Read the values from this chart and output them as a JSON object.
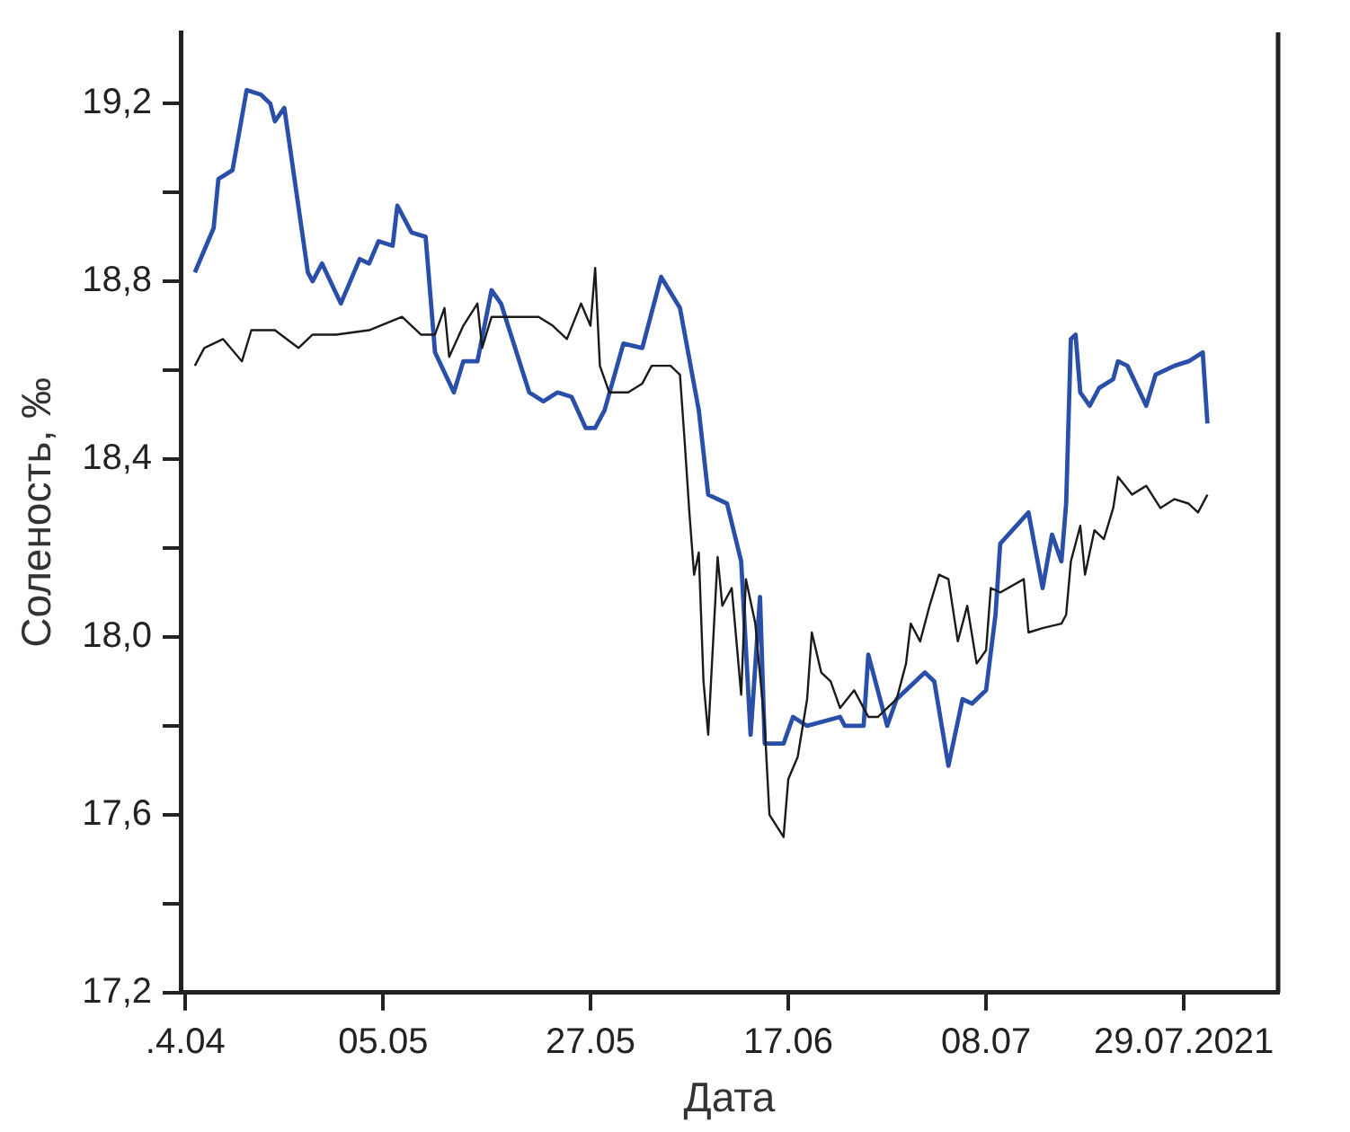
{
  "chart_data": {
    "type": "line",
    "xlabel": "Дата",
    "ylabel": "Соленость, ‰",
    "xlim": [
      "2021-04-13T12:00",
      "2021-08-08"
    ],
    "ylim": [
      17.2,
      19.36
    ],
    "xticks": [
      {
        "value": "2021-04-14",
        "label": ".4.04"
      },
      {
        "value": "2021-05-05",
        "label": "05.05"
      },
      {
        "value": "2021-05-27",
        "label": "27.05"
      },
      {
        "value": "2021-06-17",
        "label": "17.06"
      },
      {
        "value": "2021-07-08",
        "label": "08.07"
      },
      {
        "value": "2021-07-29",
        "label": "29.07.2021"
      }
    ],
    "yticks": [
      {
        "value": 17.2,
        "label": "17,2"
      },
      {
        "value": 17.4,
        "label": null
      },
      {
        "value": 17.6,
        "label": "17,6"
      },
      {
        "value": 17.8,
        "label": null
      },
      {
        "value": 18.0,
        "label": "18,0"
      },
      {
        "value": 18.2,
        "label": null
      },
      {
        "value": 18.4,
        "label": "18,4"
      },
      {
        "value": 18.6,
        "label": null
      },
      {
        "value": 18.8,
        "label": "18,8"
      },
      {
        "value": 19.0,
        "label": null
      },
      {
        "value": 19.2,
        "label": "19,2"
      }
    ],
    "series": [
      {
        "color": "#1a1a1a",
        "x": [
          "2021-04-15",
          "2021-04-16",
          "2021-04-18",
          "2021-04-20",
          "2021-04-21",
          "2021-04-23T12:00",
          "2021-04-26",
          "2021-04-27T12:00",
          "2021-04-30",
          "2021-05-03T12:00",
          "2021-05-07",
          "2021-05-09",
          "2021-05-10T12:00",
          "2021-05-11T12:00",
          "2021-05-12",
          "2021-05-13T12:00",
          "2021-05-15",
          "2021-05-15T12:00",
          "2021-05-16T12:00",
          "2021-05-19",
          "2021-05-21T12:00",
          "2021-05-23",
          "2021-05-24T12:00",
          "2021-05-26",
          "2021-05-27",
          "2021-05-27T12:00",
          "2021-05-28",
          "2021-05-29",
          "2021-05-31",
          "2021-06-01T12:00",
          "2021-06-02T12:00",
          "2021-06-04T12:00",
          "2021-06-05T12:00",
          "2021-06-06",
          "2021-06-06T12:00",
          "2021-06-07",
          "2021-06-07T12:00",
          "2021-06-08",
          "2021-06-08T12:00",
          "2021-06-09T12:00",
          "2021-06-10",
          "2021-06-11",
          "2021-06-12",
          "2021-06-12T12:00",
          "2021-06-13T12:00",
          "2021-06-14T12:00",
          "2021-06-15",
          "2021-06-16T12:00",
          "2021-06-17",
          "2021-06-18",
          "2021-06-19",
          "2021-06-19T12:00",
          "2021-06-20T12:00",
          "2021-06-21T12:00",
          "2021-06-22T12:00",
          "2021-06-24",
          "2021-06-25T12:00",
          "2021-06-26T12:00",
          "2021-06-28T12:00",
          "2021-06-29T12:00",
          "2021-06-30",
          "2021-07-01",
          "2021-07-02",
          "2021-07-03",
          "2021-07-04",
          "2021-07-05",
          "2021-07-06",
          "2021-07-07",
          "2021-07-08",
          "2021-07-08T12:00",
          "2021-07-09T12:00",
          "2021-07-12",
          "2021-07-12T12:00",
          "2021-07-14",
          "2021-07-16",
          "2021-07-16T12:00",
          "2021-07-17",
          "2021-07-18",
          "2021-07-18T12:00",
          "2021-07-19T12:00",
          "2021-07-20T12:00",
          "2021-07-21T12:00",
          "2021-07-22",
          "2021-07-23T12:00",
          "2021-07-25",
          "2021-07-26T12:00",
          "2021-07-28",
          "2021-07-29T12:00",
          "2021-07-30T12:00",
          "2021-07-31T12:00"
        ],
        "values": [
          18.61,
          18.65,
          18.67,
          18.62,
          18.69,
          18.69,
          18.65,
          18.68,
          18.68,
          18.69,
          18.72,
          18.68,
          18.68,
          18.74,
          18.63,
          18.7,
          18.75,
          18.65,
          18.72,
          18.72,
          18.72,
          18.7,
          18.67,
          18.75,
          18.7,
          18.83,
          18.61,
          18.55,
          18.55,
          18.57,
          18.61,
          18.61,
          18.59,
          18.44,
          18.28,
          18.14,
          18.19,
          17.9,
          17.78,
          18.18,
          18.07,
          18.11,
          17.87,
          18.13,
          18.03,
          17.8,
          17.6,
          17.55,
          17.68,
          17.73,
          17.86,
          18.01,
          17.92,
          17.9,
          17.84,
          17.88,
          17.82,
          17.82,
          17.86,
          17.94,
          18.03,
          17.99,
          18.07,
          18.14,
          18.13,
          17.99,
          18.07,
          17.94,
          17.97,
          18.11,
          18.1,
          18.13,
          18.01,
          18.02,
          18.03,
          18.05,
          18.17,
          18.25,
          18.14,
          18.24,
          18.22,
          18.29,
          18.36,
          18.32,
          18.34,
          18.29,
          18.31,
          18.3,
          18.28,
          18.32
        ]
      },
      {
        "color": "#2a4fa8",
        "x": [
          "2021-04-15",
          "2021-04-17",
          "2021-04-17T12:00",
          "2021-04-19",
          "2021-04-20T12:00",
          "2021-04-22",
          "2021-04-23",
          "2021-04-23T12:00",
          "2021-04-24T12:00",
          "2021-04-27",
          "2021-04-27T12:00",
          "2021-04-28T12:00",
          "2021-04-30T12:00",
          "2021-05-02T12:00",
          "2021-05-03T12:00",
          "2021-05-04T12:00",
          "2021-05-06",
          "2021-05-06T12:00",
          "2021-05-08",
          "2021-05-09T12:00",
          "2021-05-10T12:00",
          "2021-05-12T12:00",
          "2021-05-13T12:00",
          "2021-05-15",
          "2021-05-16T12:00",
          "2021-05-17T12:00",
          "2021-05-20T12:00",
          "2021-05-22",
          "2021-05-23T12:00",
          "2021-05-25",
          "2021-05-26T12:00",
          "2021-05-27T12:00",
          "2021-05-28T12:00",
          "2021-05-30T12:00",
          "2021-06-01T12:00",
          "2021-06-03T12:00",
          "2021-06-05T12:00",
          "2021-06-07T12:00",
          "2021-06-08T12:00",
          "2021-06-10T12:00",
          "2021-06-12",
          "2021-06-13",
          "2021-06-14",
          "2021-06-14T12:00",
          "2021-06-16T12:00",
          "2021-06-17T12:00",
          "2021-06-19",
          "2021-06-22T12:00",
          "2021-06-23",
          "2021-06-25",
          "2021-06-25T12:00",
          "2021-06-27T12:00",
          "2021-06-28T12:00",
          "2021-07-01T12:00",
          "2021-07-02T12:00",
          "2021-07-04",
          "2021-07-05T12:00",
          "2021-07-06T12:00",
          "2021-07-08",
          "2021-07-09",
          "2021-07-09T12:00",
          "2021-07-12T12:00",
          "2021-07-14",
          "2021-07-15",
          "2021-07-16",
          "2021-07-16T12:00",
          "2021-07-17",
          "2021-07-17T12:00",
          "2021-07-18",
          "2021-07-19",
          "2021-07-20",
          "2021-07-21T12:00",
          "2021-07-22",
          "2021-07-23",
          "2021-07-25",
          "2021-07-26",
          "2021-07-28",
          "2021-07-29T12:00",
          "2021-07-31",
          "2021-07-31T12:00"
        ],
        "values": [
          18.82,
          18.92,
          19.03,
          19.05,
          19.23,
          19.22,
          19.2,
          19.16,
          19.19,
          18.82,
          18.8,
          18.84,
          18.75,
          18.85,
          18.84,
          18.89,
          18.88,
          18.97,
          18.91,
          18.9,
          18.64,
          18.55,
          18.62,
          18.62,
          18.78,
          18.75,
          18.55,
          18.53,
          18.55,
          18.54,
          18.47,
          18.47,
          18.51,
          18.66,
          18.65,
          18.81,
          18.74,
          18.51,
          18.32,
          18.3,
          18.17,
          17.78,
          18.09,
          17.76,
          17.76,
          17.82,
          17.8,
          17.82,
          17.8,
          17.8,
          17.96,
          17.8,
          17.86,
          17.92,
          17.9,
          17.71,
          17.86,
          17.85,
          17.88,
          18.05,
          18.21,
          18.28,
          18.11,
          18.23,
          18.17,
          18.3,
          18.67,
          18.68,
          18.55,
          18.52,
          18.56,
          18.58,
          18.62,
          18.61,
          18.52,
          18.59,
          18.61,
          18.62,
          18.64,
          18.48
        ]
      }
    ]
  }
}
